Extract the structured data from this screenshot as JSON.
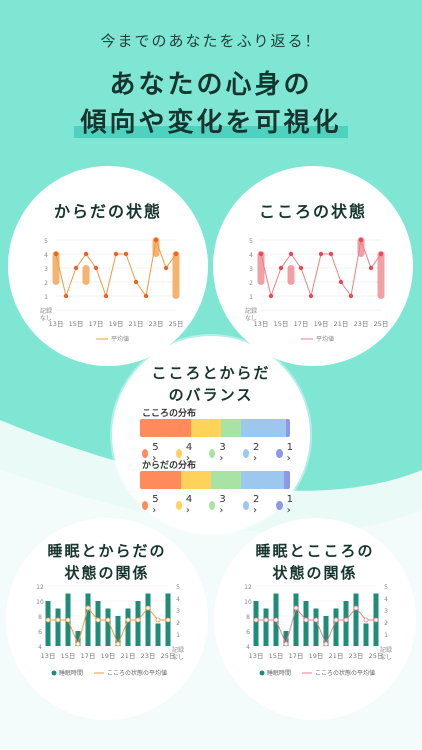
{
  "header": {
    "subtitle": "今までのあなたをふり返る！",
    "title_line1": "あなたの心身の",
    "title_line2": "傾向や変化を可視化"
  },
  "body_chart": {
    "title": "からだの状態",
    "x_ticks": [
      "13日",
      "15日",
      "17日",
      "19日",
      "21日",
      "23日",
      "25日"
    ],
    "y_ticks": [
      "5",
      "4",
      "3",
      "2",
      "1",
      "記録なし"
    ],
    "legend": "平均値",
    "color": "#f39a3f"
  },
  "mind_chart": {
    "title": "こころの状態",
    "x_ticks": [
      "13日",
      "15日",
      "17日",
      "19日",
      "21日",
      "23日",
      "25日"
    ],
    "y_ticks": [
      "5",
      "4",
      "3",
      "2",
      "1",
      "記録なし"
    ],
    "legend": "平均値",
    "color": "#ef7f88"
  },
  "balance": {
    "title_line1": "こころとからだ",
    "title_line2": "のバランス",
    "mind_label": "こころの分布",
    "body_label": "からだの分布",
    "mind_dist": [
      34,
      20,
      13,
      30,
      3
    ],
    "body_dist": [
      27,
      20,
      20,
      29,
      4
    ],
    "legend": [
      {
        "label": "5 ›",
        "color": "#ff8a5c"
      },
      {
        "label": "4 ›",
        "color": "#ffd25a"
      },
      {
        "label": "3 ›",
        "color": "#a9e3a4"
      },
      {
        "label": "2 ›",
        "color": "#9cc8f0"
      },
      {
        "label": "1 ›",
        "color": "#8d98e8"
      }
    ]
  },
  "sleep_body": {
    "title_line1": "睡眠とからだの",
    "title_line2": "状態の関係",
    "legend_bar": "睡眠時間",
    "legend_line": "こころの状態の平均値",
    "line_color": "#f39a3f"
  },
  "sleep_mind": {
    "title_line1": "睡眠とこころの",
    "title_line2": "状態の関係",
    "legend_bar": "睡眠時間",
    "legend_line": "こころの状態の平均値",
    "line_color": "#ef7f88"
  },
  "sleep_axes": {
    "left": [
      "12",
      "10",
      "8",
      "6",
      "4"
    ],
    "right": [
      "5",
      "4",
      "3",
      "2",
      "1",
      "記録なし"
    ],
    "x_ticks": [
      "13日",
      "15日",
      "17日",
      "19日",
      "21日",
      "23日",
      "25日"
    ],
    "bar_color": "#1f8c7a"
  }
}
